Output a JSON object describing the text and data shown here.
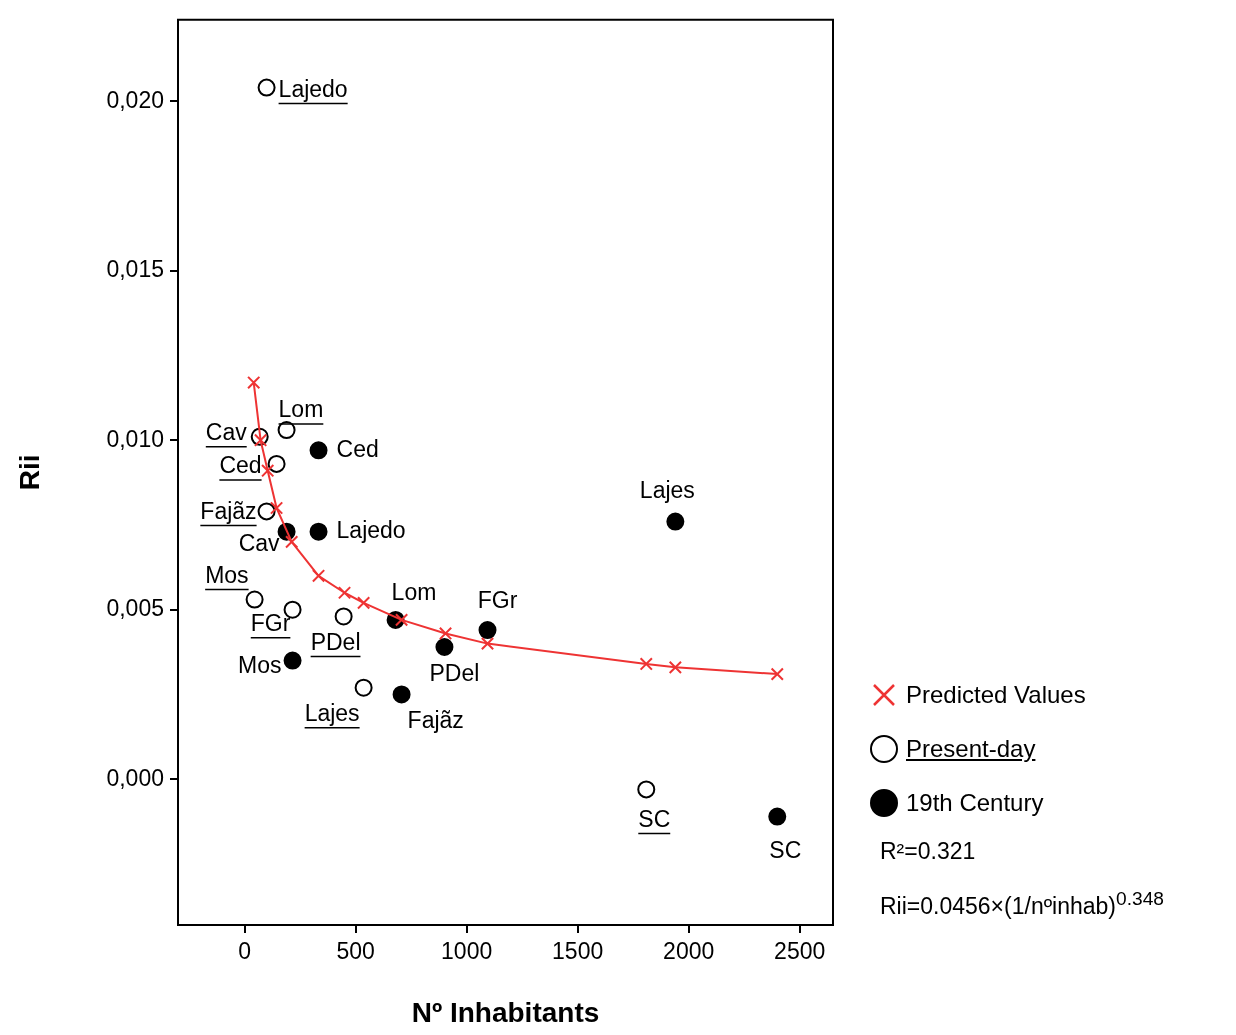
{
  "chart_data": {
    "type": "scatter",
    "xlabel": "Nº Inhabitants",
    "ylabel": "Rii",
    "xlim": [
      -300,
      2650
    ],
    "xticks": [
      0,
      500,
      1000,
      1500,
      2000,
      2500
    ],
    "ylim": [
      -0.0043,
      0.0224
    ],
    "yticks": [
      {
        "value": 0,
        "label": "0,000"
      },
      {
        "value": 0.005,
        "label": "0,005"
      },
      {
        "value": 0.01,
        "label": "0,010"
      },
      {
        "value": 0.015,
        "label": "0,015"
      },
      {
        "value": 0.02,
        "label": "0,020"
      }
    ],
    "legend": "right",
    "series": [
      {
        "name": "Predicted Values",
        "type": "line",
        "marker": "cross",
        "color": "#ee3333",
        "x": [
          41,
          72,
          104,
          144,
          212,
          333,
          450,
          536,
          707,
          905,
          1094,
          1809,
          1940,
          2399
        ],
        "values": [
          0.0117,
          0.01,
          0.0091,
          0.008,
          0.007,
          0.006,
          0.0055,
          0.0052,
          0.0047,
          0.0043,
          0.004,
          0.0034,
          0.0033,
          0.0031
        ]
      },
      {
        "name": "Present-day",
        "marker": "circle",
        "color": "#000000",
        "x": [
          99,
          68,
          189,
          144,
          99,
          45,
          216,
          446,
          536,
          1809
        ],
        "values": [
          0.0204,
          0.0101,
          0.0103,
          0.0093,
          0.0079,
          0.0053,
          0.005,
          0.0048,
          0.0027,
          -0.0003
        ],
        "value_labels": [
          "Lajedo",
          "Cav",
          "Lom",
          "Ced",
          "Fajãz",
          "Mos",
          "FGr",
          "PDel",
          "Lajes",
          "SC"
        ]
      },
      {
        "name": "19th Century",
        "marker": "circle",
        "color": "#000000",
        "x": [
          333,
          189,
          680,
          333,
          707,
          216,
          1094,
          900,
          1940,
          2399
        ],
        "values": [
          0.0073,
          0.0073,
          0.0047,
          0.0097,
          0.0025,
          0.0035,
          0.0044,
          0.0039,
          0.0076,
          -0.0011
        ],
        "value_labels": [
          "Lajedo",
          "Cav",
          "Lom",
          "Ced",
          "Fajãz",
          "Mos",
          "FGr",
          "PDel",
          "Lajes",
          "SC"
        ]
      }
    ],
    "annotations": [
      "R²=0.321",
      "Rii=0.0456×(1/nºinhab)$^{0.348}$"
    ]
  }
}
